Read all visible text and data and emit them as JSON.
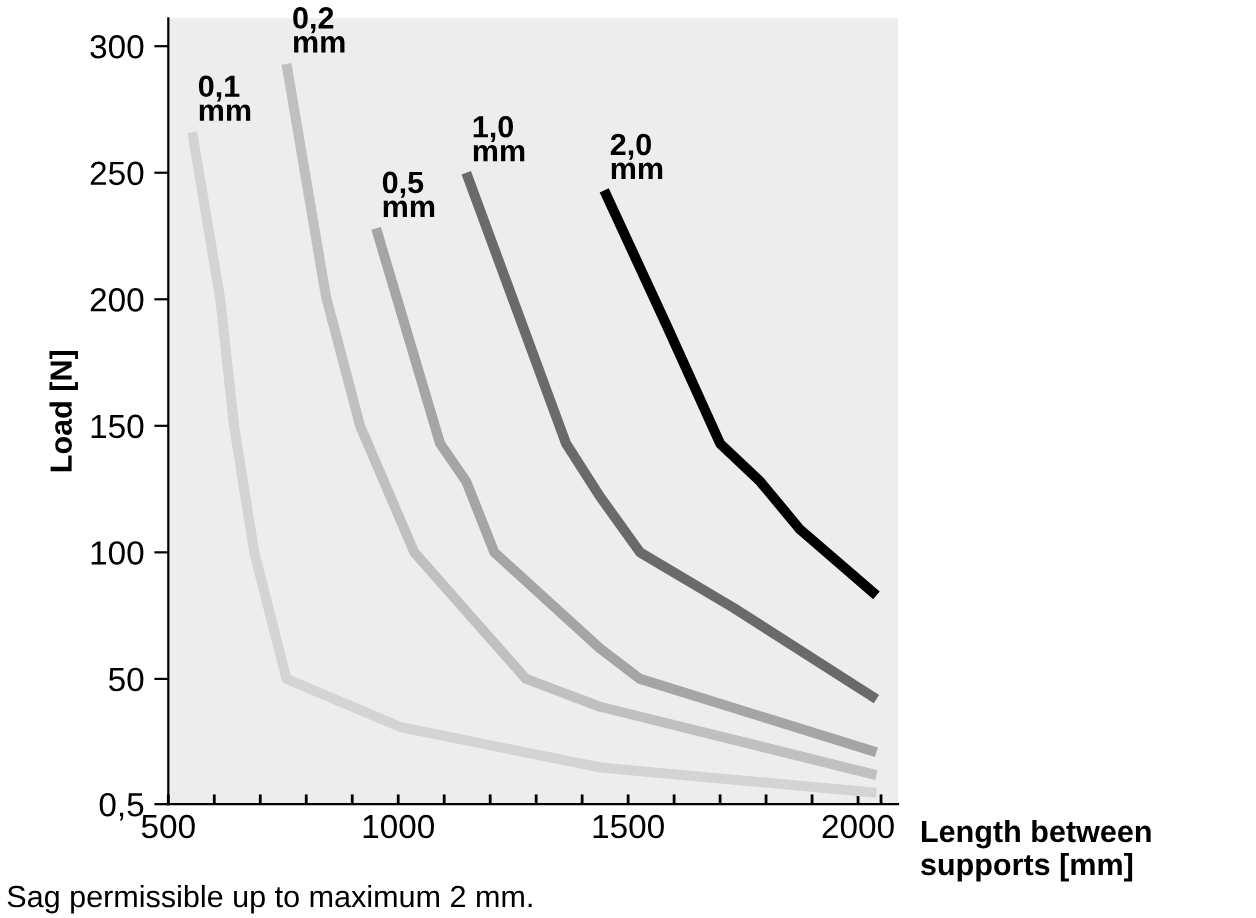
{
  "chart_data": {
    "type": "line",
    "xlabel": "Length between supports [mm]",
    "ylabel": "Load [N]",
    "xlim": [
      500,
      2087
    ],
    "ylim": [
      0.5,
      311
    ],
    "xticks": [
      500,
      {
        "value": 600,
        "label": null
      },
      {
        "value": 700,
        "label": null
      },
      {
        "value": 800,
        "label": null
      },
      {
        "value": 900,
        "label": null
      },
      1000,
      {
        "value": 1100,
        "label": null
      },
      {
        "value": 1200,
        "label": null
      },
      {
        "value": 1300,
        "label": null
      },
      {
        "value": 1400,
        "label": null
      },
      1500,
      {
        "value": 1600,
        "label": null
      },
      {
        "value": 1700,
        "label": null
      },
      {
        "value": 1800,
        "label": null
      },
      {
        "value": 1900,
        "label": null
      },
      2000,
      {
        "value": 2050,
        "label": null
      }
    ],
    "yticks": [
      {
        "value": 0.5,
        "label": "0,5"
      },
      50,
      100,
      150,
      200,
      250,
      300
    ],
    "grid": false,
    "legend": false,
    "marker": "none",
    "line_style": "solid",
    "series": [
      {
        "name": "0,1 mm",
        "color": "#d4d4d4",
        "x": [
          552,
          613,
          643,
          687,
          757,
          1004,
          1439,
          2040
        ],
        "values": [
          266,
          200,
          150,
          100,
          50,
          31,
          15,
          5
        ]
      },
      {
        "name": "0,2 mm",
        "color": "#c0c0c0",
        "x": [
          757,
          843,
          917,
          1035,
          1278,
          1439,
          2040
        ],
        "values": [
          293,
          201,
          150,
          100,
          50,
          39,
          12
        ]
      },
      {
        "name": "0,5 mm",
        "color": "#a5a5a5",
        "x": [
          952,
          1091,
          1148,
          1209,
          1439,
          1526,
          2040
        ],
        "values": [
          228,
          143,
          128,
          100,
          62,
          50,
          21
        ]
      },
      {
        "name": "1,0 mm",
        "color": "#6a6a6a",
        "x": [
          1148,
          1365,
          1439,
          1526,
          1730,
          2040
        ],
        "values": [
          250,
          143,
          122,
          100,
          78,
          42
        ]
      },
      {
        "name": "2,0 mm",
        "color": "#000000",
        "x": [
          1448,
          1583,
          1700,
          1787,
          1874,
          2040
        ],
        "values": [
          243,
          190,
          143,
          128,
          109,
          83
        ]
      }
    ],
    "annotations": [
      "Sag permissible up to maximum 2 mm."
    ]
  }
}
